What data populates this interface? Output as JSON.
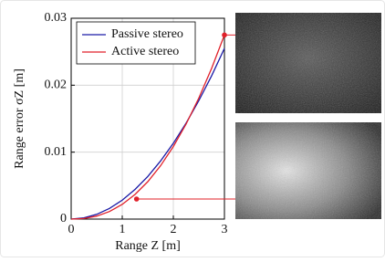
{
  "chart_data": {
    "type": "line",
    "x_label": "Range Z [m]",
    "y_label": "Range error σZ [m]",
    "x": [
      0,
      0.25,
      0.5,
      0.75,
      1,
      1.25,
      1.5,
      1.75,
      2,
      2.25,
      2.5,
      2.75,
      3
    ],
    "series": [
      {
        "name": "Passive stereo",
        "color": "#1a1aa6",
        "values": [
          0,
          0.00018,
          0.00071,
          0.00159,
          0.00283,
          0.00443,
          0.00637,
          0.00868,
          0.01133,
          0.01434,
          0.01771,
          0.02142,
          0.0255
        ]
      },
      {
        "name": "Active stereo",
        "color": "#e0202a",
        "values": [
          0,
          9e-05,
          0.00045,
          0.00113,
          0.0022,
          0.00368,
          0.00559,
          0.00797,
          0.01084,
          0.0142,
          0.0181,
          0.02254,
          0.0275
        ]
      }
    ],
    "highlighted_points": {
      "x": [
        1.28,
        3
      ],
      "y": [
        0.003,
        0.0275
      ],
      "color": "#e0202a"
    },
    "xlim": [
      0,
      3
    ],
    "ylim": [
      0,
      0.03
    ],
    "xticks": [
      0,
      1,
      2,
      3
    ],
    "yticks": [
      0,
      0.01,
      0.02,
      0.03
    ],
    "grid": true,
    "legend": "top-left"
  }
}
